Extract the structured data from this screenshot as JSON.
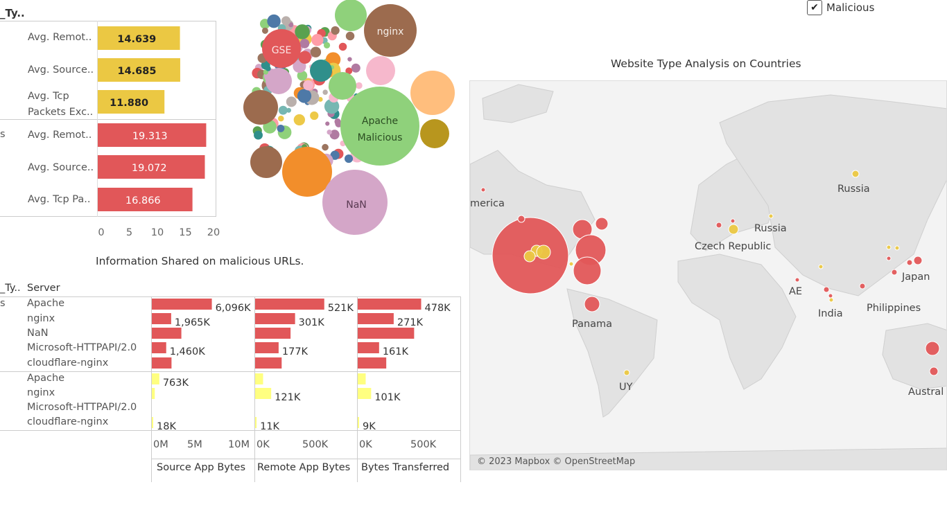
{
  "legend": {
    "label": "Malicious",
    "checked": true,
    "check_mark": "✔"
  },
  "avg_chart": {
    "header": "_Ty..",
    "group_labels": [
      "",
      "s"
    ],
    "axis_ticks": [
      "0",
      "5",
      "10",
      "15",
      "20"
    ],
    "colors": {
      "benign": "#ebc843",
      "malicious": "#e15759"
    }
  },
  "bubble_labels": {
    "nginx": "nginx",
    "gse": "GSE",
    "apache_1": "Apache",
    "apache_2": "Malicious",
    "nan": "NaN"
  },
  "info_chart": {
    "title": "Information Shared on malicious URLs.",
    "header_type": "_Ty..",
    "header_server": "Server",
    "group_labels": [
      "s"
    ],
    "columns": [
      {
        "label": "Source App Bytes",
        "ticks": [
          "0M",
          "5M",
          "10M"
        ]
      },
      {
        "label": "Remote App Bytes",
        "ticks": [
          "0K",
          "500K"
        ]
      },
      {
        "label": "Bytes Transferred",
        "ticks": [
          "0K",
          "500K"
        ]
      }
    ]
  },
  "map": {
    "title": "Website Type Analysis on Countries",
    "attribution": "© 2023 Mapbox © OpenStreetMap",
    "labels": [
      "merica",
      "Russia",
      "Russia",
      "Czech Republic",
      "AE",
      "Japan",
      "India",
      "Philippines",
      "Panama",
      "UY",
      "Austral"
    ]
  },
  "chart_data": [
    {
      "type": "bar",
      "title": "",
      "xlabel": "",
      "ylabel": "",
      "xlim": [
        0,
        20
      ],
      "categories": [
        "Avg. Remot..",
        "Avg. Source..",
        "Avg. Tcp Packets Exc..",
        "Avg. Remot..",
        "Avg. Source..",
        "Avg. Tcp Pa.."
      ],
      "series": [
        {
          "values": [
            14.639,
            14.685,
            11.88,
            null,
            null,
            null
          ],
          "labels": [
            "14.639",
            "14.685",
            "11.880",
            "",
            "",
            ""
          ]
        },
        {
          "values": [
            null,
            null,
            null,
            19.313,
            19.072,
            16.866
          ],
          "labels": [
            "",
            "",
            "",
            "19.313",
            "19.072",
            "16.866"
          ]
        }
      ]
    },
    {
      "type": "bar",
      "title": "Information Shared on malicious URLs.",
      "categories": [
        "Apache",
        "nginx",
        "NaN",
        "Microsoft-HTTPAPI/2.0",
        "cloudflare-nginx",
        "Apache",
        "nginx",
        "Microsoft-HTTPAPI/2.0",
        "cloudflare-nginx"
      ],
      "series": [
        {
          "name": "Source App Bytes",
          "values": [
            6096000,
            1965000,
            3000000,
            1460000,
            2000000,
            763000,
            300000,
            null,
            18000
          ],
          "labels": [
            "6,096K",
            "1,965K",
            "",
            "1,460K",
            "",
            "763K",
            "",
            "",
            "18K"
          ]
        },
        {
          "name": "Remote App Bytes",
          "values": [
            521000,
            301000,
            267000,
            177000,
            200000,
            60000,
            121000,
            null,
            11000
          ],
          "labels": [
            "521K",
            "301K",
            "",
            "177K",
            "",
            "",
            "121K",
            "",
            "11K"
          ]
        },
        {
          "name": "Bytes Transferred",
          "values": [
            478000,
            271000,
            425000,
            161000,
            215000,
            60000,
            101000,
            null,
            9000
          ],
          "labels": [
            "478K",
            "271K",
            "",
            "161K",
            "",
            "",
            "101K",
            "",
            "9K"
          ]
        }
      ]
    }
  ]
}
